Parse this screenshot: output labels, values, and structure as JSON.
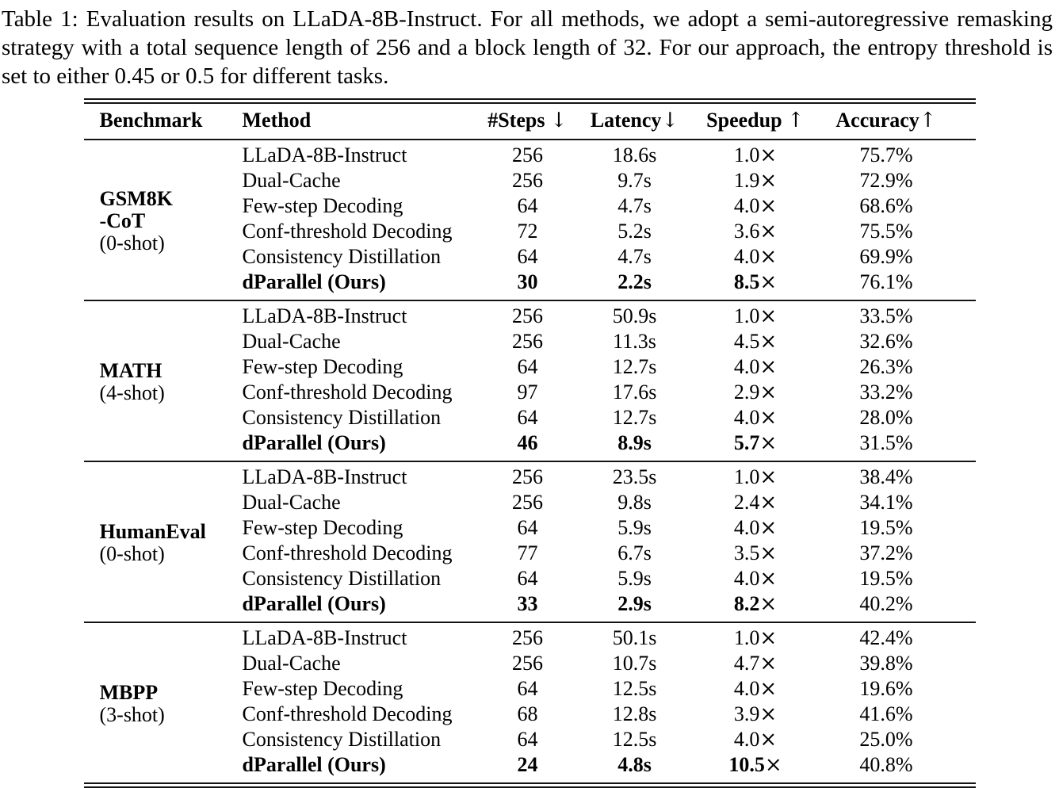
{
  "caption": {
    "text": "Table 1: Evaluation results on LLaDA-8B-Instruct. For all methods, we adopt a semi-autoregressive remasking strategy with a total sequence length of 256 and a block length of 32. For our approach, the entropy threshold is set to either 0.45 or 0.5 for different tasks."
  },
  "table": {
    "times_symbol": "×",
    "columns": [
      {
        "label": "Benchmark",
        "arrow": ""
      },
      {
        "label": "Method",
        "arrow": ""
      },
      {
        "label": "#Steps ",
        "arrow": "↓"
      },
      {
        "label": "Latency",
        "arrow": "↓"
      },
      {
        "label": "Speedup ",
        "arrow": "↑"
      },
      {
        "label": "Accuracy",
        "arrow": "↑"
      }
    ],
    "sections": [
      {
        "benchmark_lines": [
          {
            "text": "GSM8K",
            "bold": true
          },
          {
            "text": "-CoT",
            "bold": true
          },
          {
            "text": "(0-shot)",
            "bold": false
          }
        ],
        "rows": [
          {
            "method": "LLaDA-8B-Instruct",
            "steps": "256",
            "latency": "18.6s",
            "speedup": "1.0",
            "accuracy": "75.7%",
            "bold": false
          },
          {
            "method": "Dual-Cache",
            "steps": "256",
            "latency": "9.7s",
            "speedup": "1.9",
            "accuracy": "72.9%",
            "bold": false
          },
          {
            "method": "Few-step Decoding",
            "steps": "64",
            "latency": "4.7s",
            "speedup": "4.0",
            "accuracy": "68.6%",
            "bold": false
          },
          {
            "method": "Conf-threshold Decoding",
            "steps": "72",
            "latency": "5.2s",
            "speedup": "3.6",
            "accuracy": "75.5%",
            "bold": false
          },
          {
            "method": "Consistency Distillation",
            "steps": "64",
            "latency": "4.7s",
            "speedup": "4.0",
            "accuracy": "69.9%",
            "bold": false
          },
          {
            "method": "dParallel (Ours)",
            "steps": "30",
            "latency": "2.2s",
            "speedup": "8.5",
            "accuracy": "76.1%",
            "bold": true
          }
        ]
      },
      {
        "benchmark_lines": [
          {
            "text": "MATH",
            "bold": true
          },
          {
            "text": "(4-shot)",
            "bold": false
          }
        ],
        "rows": [
          {
            "method": "LLaDA-8B-Instruct",
            "steps": "256",
            "latency": "50.9s",
            "speedup": "1.0",
            "accuracy": "33.5%",
            "bold": false
          },
          {
            "method": "Dual-Cache",
            "steps": "256",
            "latency": "11.3s",
            "speedup": "4.5",
            "accuracy": "32.6%",
            "bold": false
          },
          {
            "method": "Few-step Decoding",
            "steps": "64",
            "latency": "12.7s",
            "speedup": "4.0",
            "accuracy": "26.3%",
            "bold": false
          },
          {
            "method": "Conf-threshold Decoding",
            "steps": "97",
            "latency": "17.6s",
            "speedup": "2.9",
            "accuracy": "33.2%",
            "bold": false
          },
          {
            "method": "Consistency Distillation",
            "steps": "64",
            "latency": "12.7s",
            "speedup": "4.0",
            "accuracy": "28.0%",
            "bold": false
          },
          {
            "method": "dParallel (Ours)",
            "steps": "46",
            "latency": "8.9s",
            "speedup": "5.7",
            "accuracy": "31.5%",
            "bold": true
          }
        ]
      },
      {
        "benchmark_lines": [
          {
            "text": "HumanEval",
            "bold": true
          },
          {
            "text": "(0-shot)",
            "bold": false
          }
        ],
        "rows": [
          {
            "method": "LLaDA-8B-Instruct",
            "steps": "256",
            "latency": "23.5s",
            "speedup": "1.0",
            "accuracy": "38.4%",
            "bold": false
          },
          {
            "method": "Dual-Cache",
            "steps": "256",
            "latency": "9.8s",
            "speedup": "2.4",
            "accuracy": "34.1%",
            "bold": false
          },
          {
            "method": "Few-step Decoding",
            "steps": "64",
            "latency": "5.9s",
            "speedup": "4.0",
            "accuracy": "19.5%",
            "bold": false
          },
          {
            "method": "Conf-threshold Decoding",
            "steps": "77",
            "latency": "6.7s",
            "speedup": "3.5",
            "accuracy": "37.2%",
            "bold": false
          },
          {
            "method": "Consistency Distillation",
            "steps": "64",
            "latency": "5.9s",
            "speedup": "4.0",
            "accuracy": "19.5%",
            "bold": false
          },
          {
            "method": "dParallel (Ours)",
            "steps": "33",
            "latency": "2.9s",
            "speedup": "8.2",
            "accuracy": "40.2%",
            "bold": true
          }
        ]
      },
      {
        "benchmark_lines": [
          {
            "text": "MBPP",
            "bold": true
          },
          {
            "text": "(3-shot)",
            "bold": false
          }
        ],
        "rows": [
          {
            "method": "LLaDA-8B-Instruct",
            "steps": "256",
            "latency": "50.1s",
            "speedup": "1.0",
            "accuracy": "42.4%",
            "bold": false
          },
          {
            "method": "Dual-Cache",
            "steps": "256",
            "latency": "10.7s",
            "speedup": "4.7",
            "accuracy": "39.8%",
            "bold": false
          },
          {
            "method": "Few-step Decoding",
            "steps": "64",
            "latency": "12.5s",
            "speedup": "4.0",
            "accuracy": "19.6%",
            "bold": false
          },
          {
            "method": "Conf-threshold Decoding",
            "steps": "68",
            "latency": "12.8s",
            "speedup": "3.9",
            "accuracy": "41.6%",
            "bold": false
          },
          {
            "method": "Consistency Distillation",
            "steps": "64",
            "latency": "12.5s",
            "speedup": "4.0",
            "accuracy": "25.0%",
            "bold": false
          },
          {
            "method": "dParallel (Ours)",
            "steps": "24",
            "latency": "4.8s",
            "speedup": "10.5",
            "accuracy": "40.8%",
            "bold": true
          }
        ]
      }
    ]
  }
}
